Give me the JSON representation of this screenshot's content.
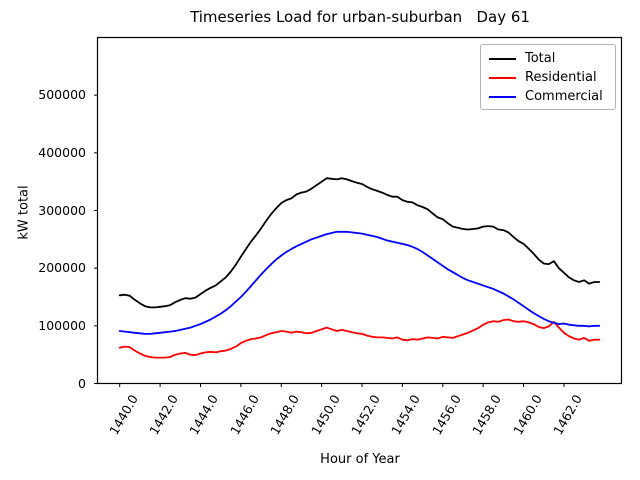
{
  "chart_data": {
    "type": "line",
    "title": "Timeseries Load for urban-suburban   Day 61",
    "xlabel": "Hour of Year",
    "ylabel": "kW total",
    "x_start": 1440.0,
    "x_step": 0.25,
    "x_end": 1463.75,
    "xlim": [
      1438.9,
      1464.85
    ],
    "ylim": [
      0,
      600000
    ],
    "xticks": [
      1440,
      1442,
      1444,
      1446,
      1448,
      1450,
      1452,
      1454,
      1456,
      1458,
      1460,
      1462
    ],
    "xtick_labels": [
      "1440.0",
      "1442.0",
      "1444.0",
      "1446.0",
      "1448.0",
      "1450.0",
      "1452.0",
      "1454.0",
      "1456.0",
      "1458.0",
      "1460.0",
      "1462.0"
    ],
    "yticks": [
      0,
      100000,
      200000,
      300000,
      400000,
      500000
    ],
    "ytick_labels": [
      "0",
      "100000",
      "200000",
      "300000",
      "400000",
      "500000"
    ],
    "grid": false,
    "legend_position": "upper right",
    "axis_color": "#000000",
    "background_color": "#ffffff",
    "series": [
      {
        "name": "Total",
        "color": "#000000",
        "values": [
          153000,
          154000,
          152000,
          145000,
          139000,
          134000,
          132000,
          132000,
          133000,
          134000,
          136000,
          141000,
          145000,
          148000,
          147000,
          149000,
          155000,
          161000,
          166000,
          170000,
          177000,
          184000,
          194000,
          206000,
          220000,
          233000,
          246000,
          257000,
          269000,
          282000,
          294000,
          304000,
          313000,
          318000,
          321000,
          328000,
          331000,
          333000,
          338000,
          344000,
          350000,
          356000,
          355000,
          354000,
          356000,
          354000,
          351000,
          348000,
          346000,
          341000,
          337000,
          334000,
          331000,
          327000,
          324000,
          324000,
          318000,
          315000,
          314000,
          309000,
          306000,
          302000,
          295000,
          288000,
          285000,
          278000,
          272000,
          270000,
          268000,
          267000,
          268000,
          269000,
          272000,
          273000,
          272000,
          267000,
          266000,
          262000,
          254000,
          247000,
          242000,
          234000,
          225000,
          215000,
          208000,
          207000,
          212000,
          200000,
          192000,
          184000,
          179000,
          176000,
          179000,
          173000,
          176000,
          176000
        ]
      },
      {
        "name": "Residential",
        "color": "#ff0000",
        "values": [
          62000,
          64000,
          63000,
          57000,
          52000,
          48000,
          46000,
          45000,
          45000,
          45000,
          46000,
          50000,
          52000,
          53000,
          50000,
          49000,
          52000,
          54000,
          55000,
          54000,
          56000,
          57000,
          60000,
          64000,
          70000,
          74000,
          77000,
          78000,
          80000,
          84000,
          87000,
          89000,
          91000,
          90000,
          88000,
          90000,
          89000,
          87000,
          88000,
          91000,
          94000,
          97000,
          94000,
          91000,
          93000,
          91000,
          89000,
          87000,
          86000,
          83000,
          81000,
          80000,
          80000,
          79000,
          78000,
          80000,
          76000,
          75000,
          77000,
          76000,
          78000,
          80000,
          79000,
          78000,
          81000,
          80000,
          79000,
          82000,
          85000,
          88000,
          92000,
          96000,
          102000,
          106000,
          108000,
          107000,
          110000,
          111000,
          108000,
          107000,
          108000,
          106000,
          103000,
          98000,
          96000,
          99000,
          107000,
          97000,
          88000,
          82000,
          78000,
          76000,
          79000,
          74000,
          76000,
          76000
        ]
      },
      {
        "name": "Commercial",
        "color": "#0000ff",
        "values": [
          91000,
          90000,
          89000,
          88000,
          87000,
          86000,
          86000,
          87000,
          88000,
          89000,
          90000,
          91000,
          93000,
          95000,
          97000,
          100000,
          103000,
          107000,
          111000,
          116000,
          121000,
          127000,
          134000,
          142000,
          150000,
          159000,
          169000,
          179000,
          189000,
          198000,
          207000,
          215000,
          222000,
          228000,
          233000,
          238000,
          242000,
          246000,
          250000,
          253000,
          256000,
          259000,
          261000,
          263000,
          263000,
          263000,
          262000,
          261000,
          260000,
          258000,
          256000,
          254000,
          251000,
          248000,
          246000,
          244000,
          242000,
          240000,
          237000,
          233000,
          228000,
          222000,
          216000,
          210000,
          204000,
          198000,
          193000,
          188000,
          183000,
          179000,
          176000,
          173000,
          170000,
          167000,
          164000,
          160000,
          156000,
          151000,
          146000,
          140000,
          134000,
          128000,
          122000,
          117000,
          112000,
          108000,
          105000,
          103000,
          104000,
          102000,
          101000,
          100000,
          100000,
          99000,
          100000,
          100000
        ]
      }
    ]
  }
}
